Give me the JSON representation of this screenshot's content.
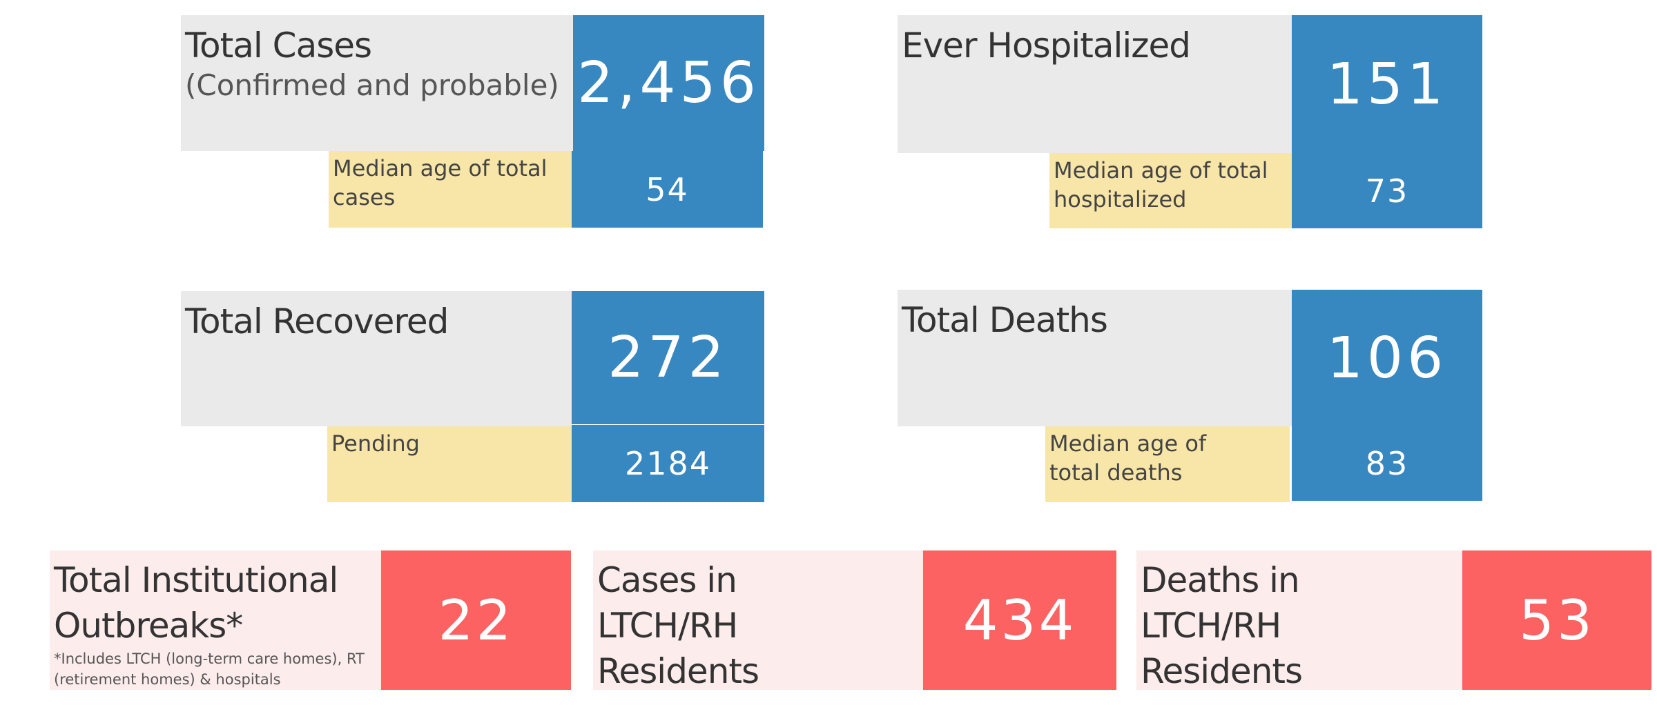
{
  "cards": {
    "total_cases": {
      "title": "Total Cases",
      "subtitle": "(Confirmed and probable)",
      "value": "2,456",
      "sub_label": "Median age of total cases",
      "sub_value": "54"
    },
    "ever_hospitalized": {
      "title": "Ever Hospitalized",
      "value": "151",
      "sub_label": "Median age of total hospitalized",
      "sub_value": "73"
    },
    "total_recovered": {
      "title": "Total Recovered",
      "value": "272",
      "sub_label": "Pending",
      "sub_value": "2184"
    },
    "total_deaths": {
      "title": "Total Deaths",
      "value": "106",
      "sub_label": "Median age of total deaths",
      "sub_value": "83"
    }
  },
  "institutional": {
    "outbreaks": {
      "title": "Total Institutional Outbreaks*",
      "footnote": "*Includes LTCH (long-term care homes), RT (retirement homes) & hospitals",
      "value": "22"
    },
    "ltch_cases": {
      "title": "Cases in LTCH/RH Residents",
      "value": "434"
    },
    "ltch_deaths": {
      "title": "Deaths in LTCH/RH Residents",
      "value": "53"
    }
  },
  "colors": {
    "blue": "#3787c1",
    "grey": "#eaeaea",
    "yellow": "#f8e6a8",
    "pink": "#fdecec",
    "red": "#fd6262"
  }
}
